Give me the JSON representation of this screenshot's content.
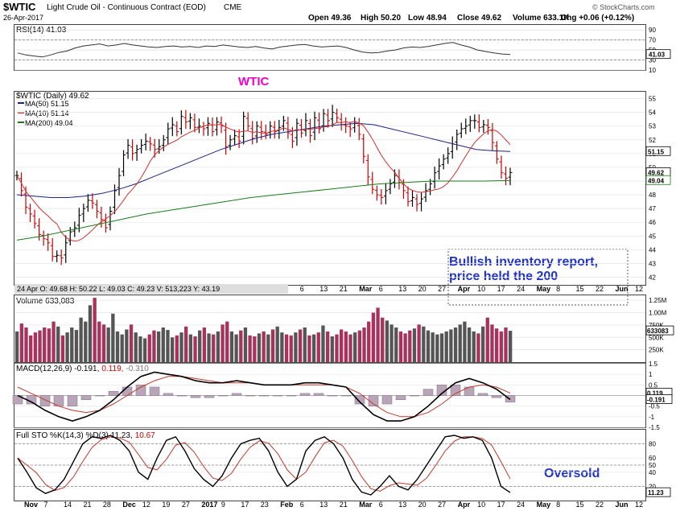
{
  "header": {
    "symbol": "$WTIC",
    "name": "Light Crude Oil - Continuous Contract (EOD)",
    "exchange": "CME",
    "date": "26-Apr-2017",
    "open": "Open 49.36",
    "high": "High 50.20",
    "low": "Low 48.94",
    "close": "Close 49.62",
    "volume": "Volume 633.1K",
    "chg": "Chg +0.06 (+0.12%)",
    "credit": "© StockCharts.com"
  },
  "annotations": {
    "wtic": "WTIC",
    "bullish_line1": "Bullish inventory report,",
    "bullish_line2": "price held the 200",
    "oversold": "Oversold"
  },
  "colors": {
    "up_bar": "#000000",
    "down_bar": "#cc0000",
    "ma50": "#1a237e",
    "ma10": "#d32f2f",
    "ma200": "#1b7a1b",
    "rsi": "#333333",
    "volume_up": "#555555",
    "volume_down": "#a8325c",
    "annotation_wtic": "#ee00cc",
    "annotation_blue": "#1f32c8"
  },
  "chart_data": [
    {
      "type": "line",
      "panel": "rsi",
      "label": "RSI(14) 41.03",
      "ylim": [
        10,
        100
      ],
      "yticks": [
        10,
        30,
        50,
        70,
        90
      ],
      "reference_lines": [
        30,
        70
      ],
      "last_value": 41.03,
      "values": [
        44,
        40,
        38,
        36,
        40,
        45,
        48,
        54,
        58,
        60,
        62,
        58,
        60,
        63,
        60,
        58,
        56,
        55,
        57,
        58,
        56,
        57,
        55,
        58,
        57,
        60,
        58,
        56,
        55,
        57,
        54,
        52,
        56,
        58,
        60,
        61,
        58,
        56,
        57,
        58,
        55,
        50,
        46,
        44,
        45,
        48,
        50,
        54,
        56,
        55,
        57,
        60,
        63,
        65,
        60,
        56,
        50,
        47,
        44,
        42,
        41.03
      ]
    },
    {
      "type": "ohlc",
      "panel": "price",
      "label": "$WTIC (Daily) 49.62",
      "ylim": [
        41.5,
        55.5
      ],
      "yticks": [
        42,
        43,
        44,
        45,
        46,
        47,
        48,
        49,
        50,
        51,
        52,
        53,
        54,
        55
      ],
      "x_labels": [
        "Nov",
        "7",
        "14",
        "21",
        "28",
        "Dec",
        "12",
        "19",
        "27",
        "2017",
        "9",
        "17",
        "23",
        "Feb",
        "6",
        "13",
        "21",
        "Mar",
        "6",
        "13",
        "20",
        "27",
        "Apr",
        "10",
        "17",
        "24",
        "May",
        "8",
        "15",
        "22",
        "Jun",
        "12"
      ],
      "closes": [
        49.4,
        48.3,
        47.1,
        46.6,
        45.9,
        45.1,
        44.8,
        44.5,
        43.5,
        43.6,
        43.4,
        44.5,
        45.3,
        45.6,
        46.5,
        47.0,
        47.6,
        47.4,
        46.8,
        46.2,
        45.6,
        46.8,
        48.3,
        49.4,
        50.9,
        51.6,
        51.0,
        51.3,
        51.6,
        51.9,
        51.7,
        51.3,
        51.5,
        52.0,
        52.8,
        53.1,
        52.6,
        53.7,
        53.3,
        53.6,
        52.9,
        53.0,
        52.8,
        53.2,
        52.6,
        53.3,
        53.0,
        51.5,
        52.0,
        52.3,
        51.9,
        53.7,
        53.0,
        52.1,
        53.0,
        52.6,
        52.4,
        53.0,
        52.6,
        52.9,
        53.4,
        52.5,
        51.9,
        53.2,
        52.5,
        53.4,
        52.3,
        53.6,
        52.8,
        53.9,
        53.4,
        54.0,
        53.6,
        53.1,
        53.0,
        52.8,
        53.2,
        52.4,
        50.8,
        49.3,
        48.4,
        48.0,
        47.8,
        48.3,
        48.8,
        49.4,
        48.9,
        48.3,
        47.5,
        47.8,
        47.3,
        47.7,
        48.3,
        48.8,
        49.6,
        50.1,
        50.6,
        51.0,
        51.7,
        52.4,
        52.8,
        53.0,
        53.4,
        53.4,
        52.9,
        53.1,
        52.9,
        51.8,
        50.6,
        49.6,
        49.2,
        49.62
      ],
      "series": [
        {
          "name": "MA(50) 51.15",
          "last_value": 51.15,
          "values": [
            48.0,
            47.9,
            47.8,
            47.8,
            47.9,
            48.1,
            48.4,
            48.8,
            49.3,
            49.8,
            50.3,
            50.8,
            51.3,
            51.7,
            52.1,
            52.4,
            52.6,
            52.8,
            53.0,
            53.1,
            53.2,
            53.1,
            52.8,
            52.5,
            52.2,
            51.9,
            51.6,
            51.3,
            51.2,
            51.15
          ]
        },
        {
          "name": "MA(10) 51.14",
          "last_value": 51.14
        },
        {
          "name": "MA(200) 49.04",
          "last_value": 49.04,
          "values": [
            44.7,
            45.0,
            45.4,
            45.8,
            46.2,
            46.6,
            46.9,
            47.2,
            47.5,
            47.8,
            48.0,
            48.2,
            48.4,
            48.6,
            48.8,
            48.9,
            49.0,
            49.0,
            49.0,
            49.04
          ]
        }
      ],
      "overlay_legend": "24 Apr O: 49.68 H: 50.22 L: 49.03 C: 49.23 V: 513,223 Y: 43.19"
    },
    {
      "type": "bar",
      "panel": "volume",
      "label": "Volume 633,083",
      "last_value": "633083",
      "yticks": [
        "250K",
        "500K",
        "750K",
        "1.00M",
        "1.25M"
      ],
      "ylim": [
        0,
        1350000
      ],
      "values": [
        620,
        780,
        700,
        540,
        600,
        640,
        700,
        680,
        820,
        720,
        540,
        600,
        700,
        650,
        900,
        820,
        1150,
        1300,
        820,
        760,
        700,
        980,
        620,
        560,
        660,
        760,
        600,
        520,
        480,
        560,
        640,
        620,
        700,
        650,
        500,
        540,
        600,
        720,
        560,
        520,
        640,
        700,
        580,
        560,
        620,
        760,
        820,
        620,
        560,
        640,
        700,
        540,
        520,
        580,
        620,
        560,
        660,
        720,
        600,
        560,
        540,
        600,
        660,
        700,
        540,
        560,
        600,
        740,
        620,
        520,
        560,
        660,
        620,
        560,
        600,
        640,
        700,
        820,
        1000,
        1100,
        900,
        840,
        760,
        700,
        620,
        580,
        640,
        680,
        760,
        720,
        640,
        600,
        560,
        580,
        620,
        660,
        700,
        760,
        820,
        700,
        620,
        580,
        720,
        900,
        760,
        680,
        620,
        700,
        633
      ]
    },
    {
      "type": "line",
      "panel": "macd",
      "label_parts": [
        "MACD(12,26,9) -0.191,",
        "0.119,",
        "-0.310"
      ],
      "ylim": [
        -1.5,
        1.5
      ],
      "yticks": [
        -1.5,
        -1.0,
        -0.5,
        0,
        0.5,
        1.0,
        1.5
      ],
      "series": [
        {
          "name": "MACD",
          "last_value": -0.191,
          "values": [
            0.0,
            -0.3,
            -0.7,
            -1.0,
            -1.2,
            -1.0,
            -0.7,
            -0.2,
            0.4,
            0.9,
            1.1,
            1.0,
            0.9,
            0.7,
            0.6,
            0.6,
            0.7,
            0.6,
            0.5,
            0.5,
            0.5,
            0.6,
            0.6,
            0.5,
            0.4,
            -0.3,
            -0.9,
            -1.2,
            -1.2,
            -1.0,
            -0.5,
            0.1,
            0.6,
            0.8,
            0.6,
            0.3,
            -0.191
          ]
        },
        {
          "name": "Signal",
          "last_value": 0.119,
          "values": [
            0.4,
            0.1,
            -0.2,
            -0.5,
            -0.7,
            -0.8,
            -0.7,
            -0.4,
            0.0,
            0.4,
            0.7,
            0.9,
            0.9,
            0.8,
            0.7,
            0.6,
            0.6,
            0.6,
            0.5,
            0.5,
            0.5,
            0.5,
            0.5,
            0.5,
            0.4,
            0.1,
            -0.4,
            -0.8,
            -1.0,
            -1.0,
            -0.8,
            -0.4,
            0.1,
            0.4,
            0.5,
            0.4,
            0.119
          ]
        },
        {
          "name": "Histogram",
          "last_value": -0.31
        }
      ]
    },
    {
      "type": "line",
      "panel": "stochastic",
      "label_parts": [
        "Full STO %K(14,3) %D(3) 11.23,",
        "10.67"
      ],
      "ylim": [
        0,
        100
      ],
      "yticks": [
        20,
        40,
        50,
        60,
        80
      ],
      "reference_lines": [
        20,
        50,
        80
      ],
      "last_value": 11.23,
      "series": [
        {
          "name": "%K",
          "last_value": 11.23,
          "values": [
            60,
            40,
            18,
            10,
            15,
            30,
            55,
            80,
            90,
            88,
            92,
            85,
            70,
            40,
            30,
            60,
            85,
            90,
            70,
            45,
            30,
            20,
            35,
            60,
            80,
            85,
            88,
            70,
            40,
            20,
            30,
            70,
            85,
            90,
            80,
            60,
            30,
            12,
            8,
            20,
            35,
            20,
            15,
            30,
            50,
            70,
            90,
            92,
            88,
            90,
            85,
            60,
            20,
            11.23
          ]
        },
        {
          "name": "%D",
          "last_value": 10.67
        }
      ]
    }
  ]
}
